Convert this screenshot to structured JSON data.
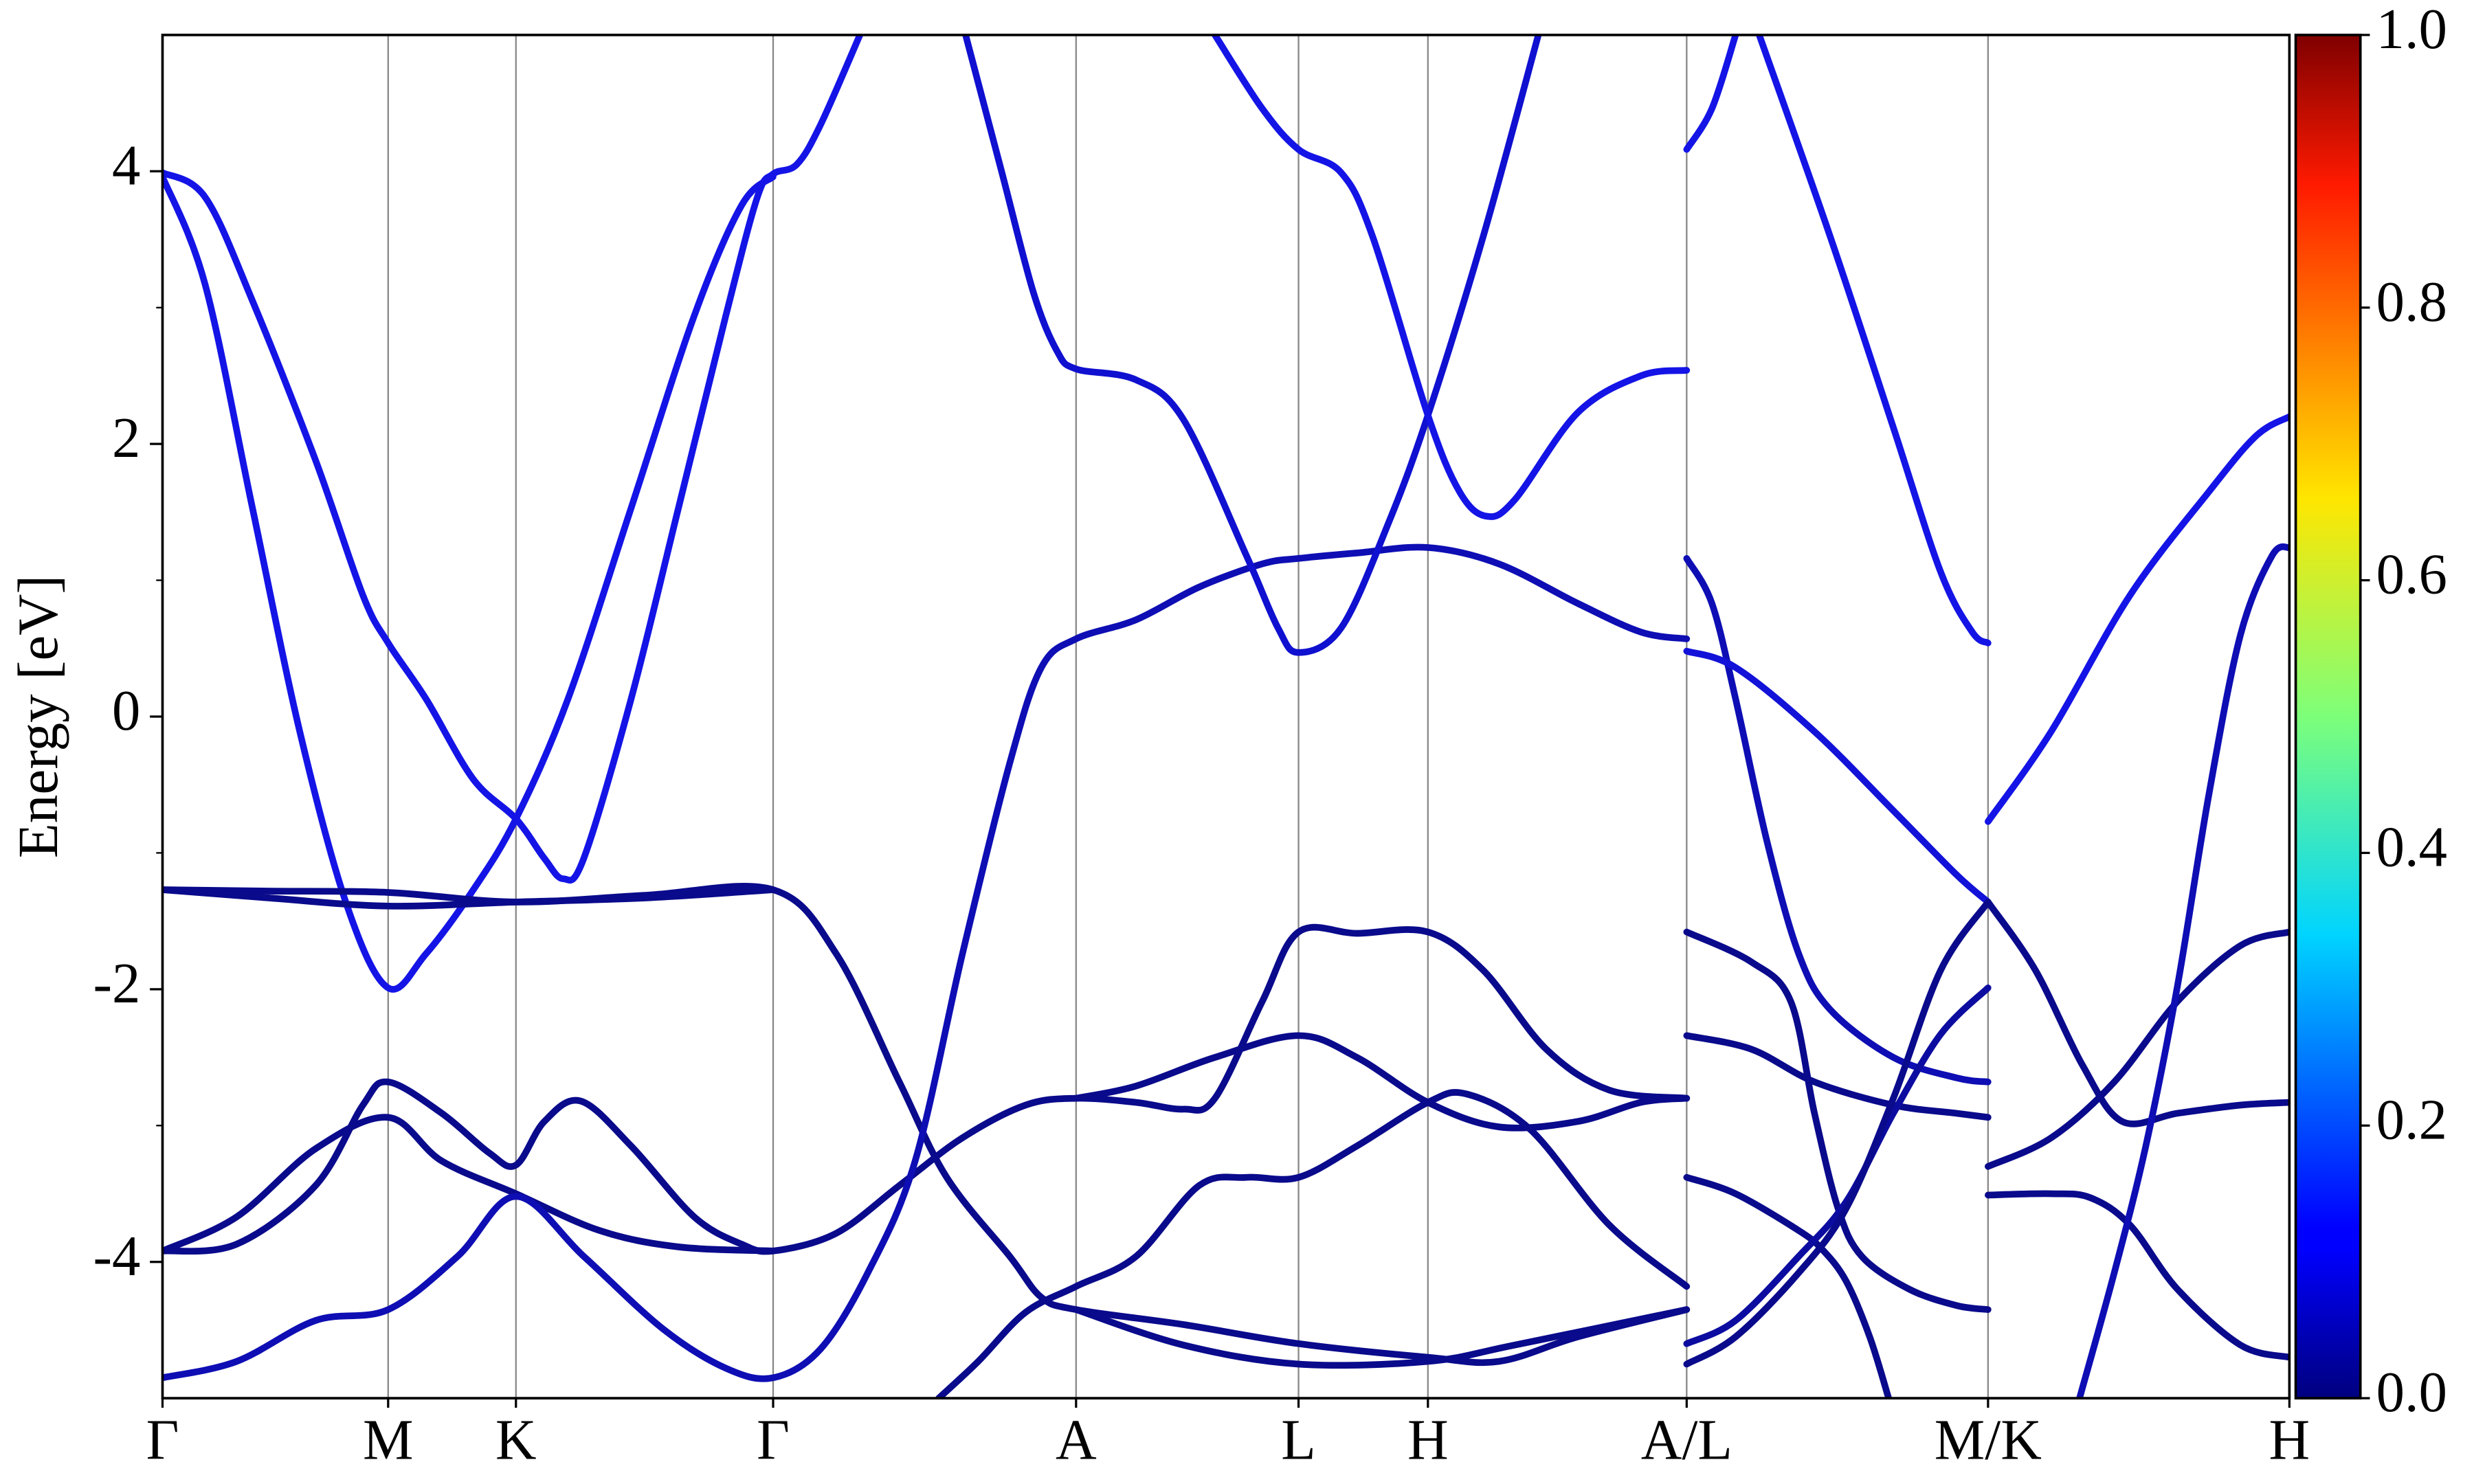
{
  "chart_data": {
    "type": "band-structure",
    "ylabel": "Energy [eV]",
    "xlim": [
      0,
      1348
    ],
    "ylim": [
      -5,
      5
    ],
    "xticks": [
      {
        "value": 0,
        "label": "Γ"
      },
      {
        "value": 143,
        "label": "M"
      },
      {
        "value": 224,
        "label": "K"
      },
      {
        "value": 387,
        "label": "Γ"
      },
      {
        "value": 579,
        "label": "A"
      },
      {
        "value": 720,
        "label": "L"
      },
      {
        "value": 802,
        "label": "H"
      },
      {
        "value": 966,
        "label": "A/L"
      },
      {
        "value": 1157,
        "label": "M/K"
      },
      {
        "value": 1348,
        "label": "H"
      }
    ],
    "yticks": [
      -4,
      -2,
      0,
      2,
      4
    ],
    "yminorticks": [
      -3,
      -1,
      1,
      3
    ],
    "xgrid": true,
    "colorbar": {
      "colormap": "jet",
      "lim": [
        0,
        1
      ],
      "ticks": [
        {
          "value": 0,
          "label": "0.0"
        },
        {
          "value": 0.2,
          "label": "0.2"
        },
        {
          "value": 0.4,
          "label": "0.4"
        },
        {
          "value": 0.6,
          "label": "0.6"
        },
        {
          "value": 0.8,
          "label": "0.8"
        },
        {
          "value": 1,
          "label": "1.0"
        }
      ]
    },
    "series": [
      {
        "color": "#1414e6",
        "x": [
          0,
          27,
          57,
          97,
          127,
          143,
          167,
          197,
          224,
          242,
          254,
          267,
          297,
          327,
          357,
          377,
          387,
          402,
          417,
          442
        ],
        "values": [
          3.99,
          3.81,
          3.05,
          1.88,
          0.89,
          0.54,
          0.13,
          -0.46,
          -0.75,
          -1.04,
          -1.19,
          -1.04,
          0.13,
          1.53,
          2.94,
          3.81,
          3.98,
          4.05,
          4.34,
          5.0
        ]
      },
      {
        "color": "#1414e6",
        "x": [
          0,
          27,
          57,
          87,
          117,
          143,
          167,
          197,
          224,
          257,
          297,
          337,
          367,
          387
        ],
        "values": [
          3.96,
          3.17,
          1.53,
          -0.11,
          -1.39,
          -1.99,
          -1.74,
          -1.27,
          -0.75,
          0.13,
          1.53,
          2.94,
          3.75,
          3.96
        ]
      },
      {
        "color": "#0a0a8c",
        "x": [
          0,
          67,
          143,
          224,
          307,
          387,
          427,
          467,
          497,
          537,
          557,
          579,
          647,
          720,
          802,
          847,
          897,
          966
        ],
        "values": [
          -1.27,
          -1.28,
          -1.29,
          -1.36,
          -1.31,
          -1.27,
          -1.74,
          -2.68,
          -3.38,
          -3.96,
          -4.26,
          -4.35,
          -4.46,
          -4.6,
          -4.7,
          -4.73,
          -4.55,
          -4.35
        ]
      },
      {
        "color": "#0a0a8c",
        "x": [
          0,
          67,
          143,
          224,
          307,
          387
        ],
        "values": [
          -1.27,
          -1.33,
          -1.39,
          -1.36,
          -1.33,
          -1.27
        ]
      },
      {
        "color": "#0a0a8c",
        "x": [
          0,
          47,
          97,
          127,
          143,
          177,
          207,
          224,
          242,
          265,
          297,
          337,
          367,
          387,
          427,
          467,
          507,
          547,
          579,
          617,
          647,
          667,
          697,
          720,
          757,
          802,
          837,
          877,
          917,
          966
        ],
        "values": [
          -3.92,
          -3.87,
          -3.44,
          -2.85,
          -2.68,
          -2.91,
          -3.2,
          -3.29,
          -2.97,
          -2.82,
          -3.15,
          -3.67,
          -3.87,
          -3.92,
          -3.79,
          -3.44,
          -3.09,
          -2.85,
          -2.8,
          -2.83,
          -2.88,
          -2.8,
          -2.09,
          -1.58,
          -1.59,
          -1.58,
          -1.86,
          -2.44,
          -2.74,
          -2.8
        ]
      },
      {
        "color": "#0a0a8c",
        "x": [
          0,
          47,
          97,
          143,
          177,
          224,
          277,
          327,
          387
        ],
        "values": [
          -3.92,
          -3.67,
          -3.17,
          -2.94,
          -3.26,
          -3.5,
          -3.77,
          -3.89,
          -3.92
        ]
      },
      {
        "color": "#0a0a8c",
        "x": [
          579,
          617,
          667,
          720,
          757,
          802,
          847,
          897,
          937,
          966
        ],
        "values": [
          -2.8,
          -2.71,
          -2.5,
          -2.34,
          -2.5,
          -2.83,
          -3.01,
          -2.97,
          -2.83,
          -2.8
        ]
      },
      {
        "color": "#0e0eb4",
        "x": [
          0,
          47,
          97,
          143,
          187,
          224,
          267,
          317,
          357,
          387,
          417,
          447,
          477,
          507,
          537,
          557,
          579,
          617,
          657,
          697,
          720,
          757,
          802,
          847,
          897,
          937,
          966
        ],
        "values": [
          -4.85,
          -4.73,
          -4.43,
          -4.35,
          -3.96,
          -3.52,
          -3.96,
          -4.49,
          -4.78,
          -4.85,
          -4.64,
          -4.08,
          -3.26,
          -1.74,
          -0.34,
          0.36,
          0.57,
          0.71,
          0.95,
          1.12,
          1.16,
          1.2,
          1.24,
          1.12,
          0.83,
          0.62,
          0.57
        ]
      },
      {
        "color": "#1010d0",
        "x": [
          509,
          532,
          552,
          567,
          579,
          617,
          647,
          687,
          707,
          720,
          747,
          777,
          802,
          837,
          872
        ],
        "values": [
          5.0,
          3.99,
          3.11,
          2.68,
          2.55,
          2.47,
          2.18,
          1.18,
          0.65,
          0.47,
          0.65,
          1.42,
          2.21,
          3.52,
          5.0
        ]
      },
      {
        "color": "#1414e6",
        "x": [
          667,
          697,
          720,
          747,
          767,
          802,
          822,
          839,
          857,
          897,
          937,
          966
        ],
        "values": [
          5.0,
          4.46,
          4.16,
          3.99,
          3.52,
          2.21,
          1.65,
          1.47,
          1.59,
          2.23,
          2.5,
          2.54
        ]
      },
      {
        "color": "#0a0a8c",
        "x": [
          492,
          517,
          547,
          579,
          617,
          657,
          687,
          720,
          757,
          802,
          827,
          867,
          917,
          966
        ],
        "values": [
          -5.0,
          -4.73,
          -4.37,
          -4.18,
          -3.96,
          -3.44,
          -3.38,
          -3.38,
          -3.15,
          -2.83,
          -2.77,
          -3.03,
          -3.73,
          -4.18
        ]
      },
      {
        "color": "#0a0a8c",
        "x": [
          579,
          647,
          720,
          802,
          857,
          966
        ],
        "values": [
          -4.35,
          -4.61,
          -4.75,
          -4.73,
          -4.61,
          -4.35
        ]
      },
      {
        "color": "#1414e6",
        "x": [
          966,
          982,
          997
        ],
        "values": [
          4.16,
          4.46,
          5.0
        ]
      },
      {
        "color": "#1414e6",
        "x": [
          1012,
          1057,
          1097,
          1127,
          1147,
          1157
        ],
        "values": [
          5.0,
          3.52,
          2.12,
          1.06,
          0.62,
          0.54
        ]
      },
      {
        "color": "#0e0eb4",
        "x": [
          966,
          982,
          997,
          1017,
          1037,
          1057,
          1097,
          1137,
          1157
        ],
        "values": [
          1.16,
          0.83,
          0.13,
          -0.92,
          -1.74,
          -2.15,
          -2.5,
          -2.65,
          -2.68
        ]
      },
      {
        "color": "#1212d8",
        "x": [
          966,
          997,
          1047,
          1097,
          1137,
          1157
        ],
        "values": [
          0.48,
          0.36,
          -0.11,
          -0.69,
          -1.16,
          -1.36
        ]
      },
      {
        "color": "#0a0a8c",
        "x": [
          966,
          1007,
          1032,
          1047,
          1062,
          1077,
          1107,
          1137,
          1157
        ],
        "values": [
          -1.58,
          -1.8,
          -2.09,
          -2.91,
          -3.61,
          -3.96,
          -4.2,
          -4.32,
          -4.35
        ]
      },
      {
        "color": "#0a0a8c",
        "x": [
          966,
          1007,
          1047,
          1097,
          1137,
          1157
        ],
        "values": [
          -2.34,
          -2.44,
          -2.68,
          -2.85,
          -2.91,
          -2.94
        ]
      },
      {
        "color": "#0a0a8c",
        "x": [
          966,
          997,
          1037,
          1052,
          1067,
          1082,
          1094
        ],
        "values": [
          -3.38,
          -3.5,
          -3.77,
          -3.91,
          -4.14,
          -4.55,
          -5.0
        ]
      },
      {
        "color": "#0c0ca0",
        "x": [
          966,
          997,
          1037,
          1067,
          1097,
          1127,
          1157
        ],
        "values": [
          -4.6,
          -4.43,
          -3.96,
          -3.56,
          -2.91,
          -2.33,
          -1.99
        ]
      },
      {
        "color": "#0a0a8c",
        "x": [
          966,
          997,
          1037,
          1067,
          1097,
          1127,
          1157
        ],
        "values": [
          -4.75,
          -4.55,
          -4.08,
          -3.61,
          -2.8,
          -1.86,
          -1.36
        ]
      },
      {
        "color": "#1414e6",
        "x": [
          1157,
          1197,
          1247,
          1297,
          1327,
          1348
        ],
        "values": [
          -0.77,
          -0.11,
          0.89,
          1.65,
          2.06,
          2.2
        ]
      },
      {
        "color": "#0a0a8c",
        "x": [
          1157,
          1187,
          1217,
          1242,
          1277,
          1317,
          1348
        ],
        "values": [
          -1.36,
          -1.86,
          -2.56,
          -2.97,
          -2.91,
          -2.85,
          -2.83
        ]
      },
      {
        "color": "#0a0a8c",
        "x": [
          1157,
          1197,
          1237,
          1277,
          1317,
          1348
        ],
        "values": [
          -3.3,
          -3.09,
          -2.68,
          -2.09,
          -1.68,
          -1.58
        ]
      },
      {
        "color": "#0a0a8c",
        "x": [
          1157,
          1197,
          1222,
          1247,
          1277,
          1317,
          1348
        ],
        "values": [
          -3.51,
          -3.5,
          -3.53,
          -3.73,
          -4.2,
          -4.61,
          -4.7
        ]
      },
      {
        "color": "#0e0eb4",
        "x": [
          1215,
          1237,
          1257,
          1277,
          1297,
          1317,
          1337,
          1348
        ],
        "values": [
          -5.0,
          -4.08,
          -3.15,
          -1.98,
          -0.57,
          0.6,
          1.18,
          1.24
        ]
      }
    ]
  }
}
